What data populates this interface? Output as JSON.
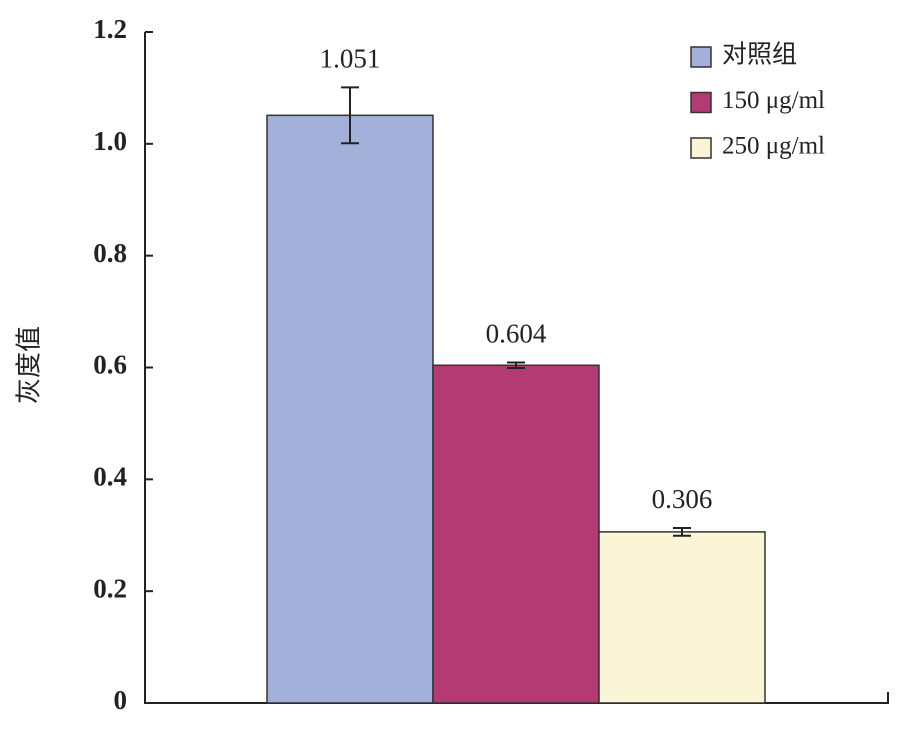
{
  "chart_data": {
    "type": "bar",
    "y_label": "灰度值",
    "series": [
      {
        "name": "对照组",
        "color": "#a3b0da",
        "values": [
          1.051
        ],
        "errors": [
          0.05
        ]
      },
      {
        "name": "150 μg/ml",
        "color": "#b33a72",
        "values": [
          0.604
        ],
        "errors": [
          0.005
        ]
      },
      {
        "name": "250 μg/ml",
        "color": "#f9f5d6",
        "values": [
          0.306
        ],
        "errors": [
          0.007
        ]
      }
    ],
    "ylim": [
      0,
      1.2
    ],
    "yticks": [
      0,
      0.2,
      0.4,
      0.6,
      0.8,
      {
        "value": 1,
        "label": "1.0"
      },
      1.2
    ],
    "legend": "top-right"
  }
}
